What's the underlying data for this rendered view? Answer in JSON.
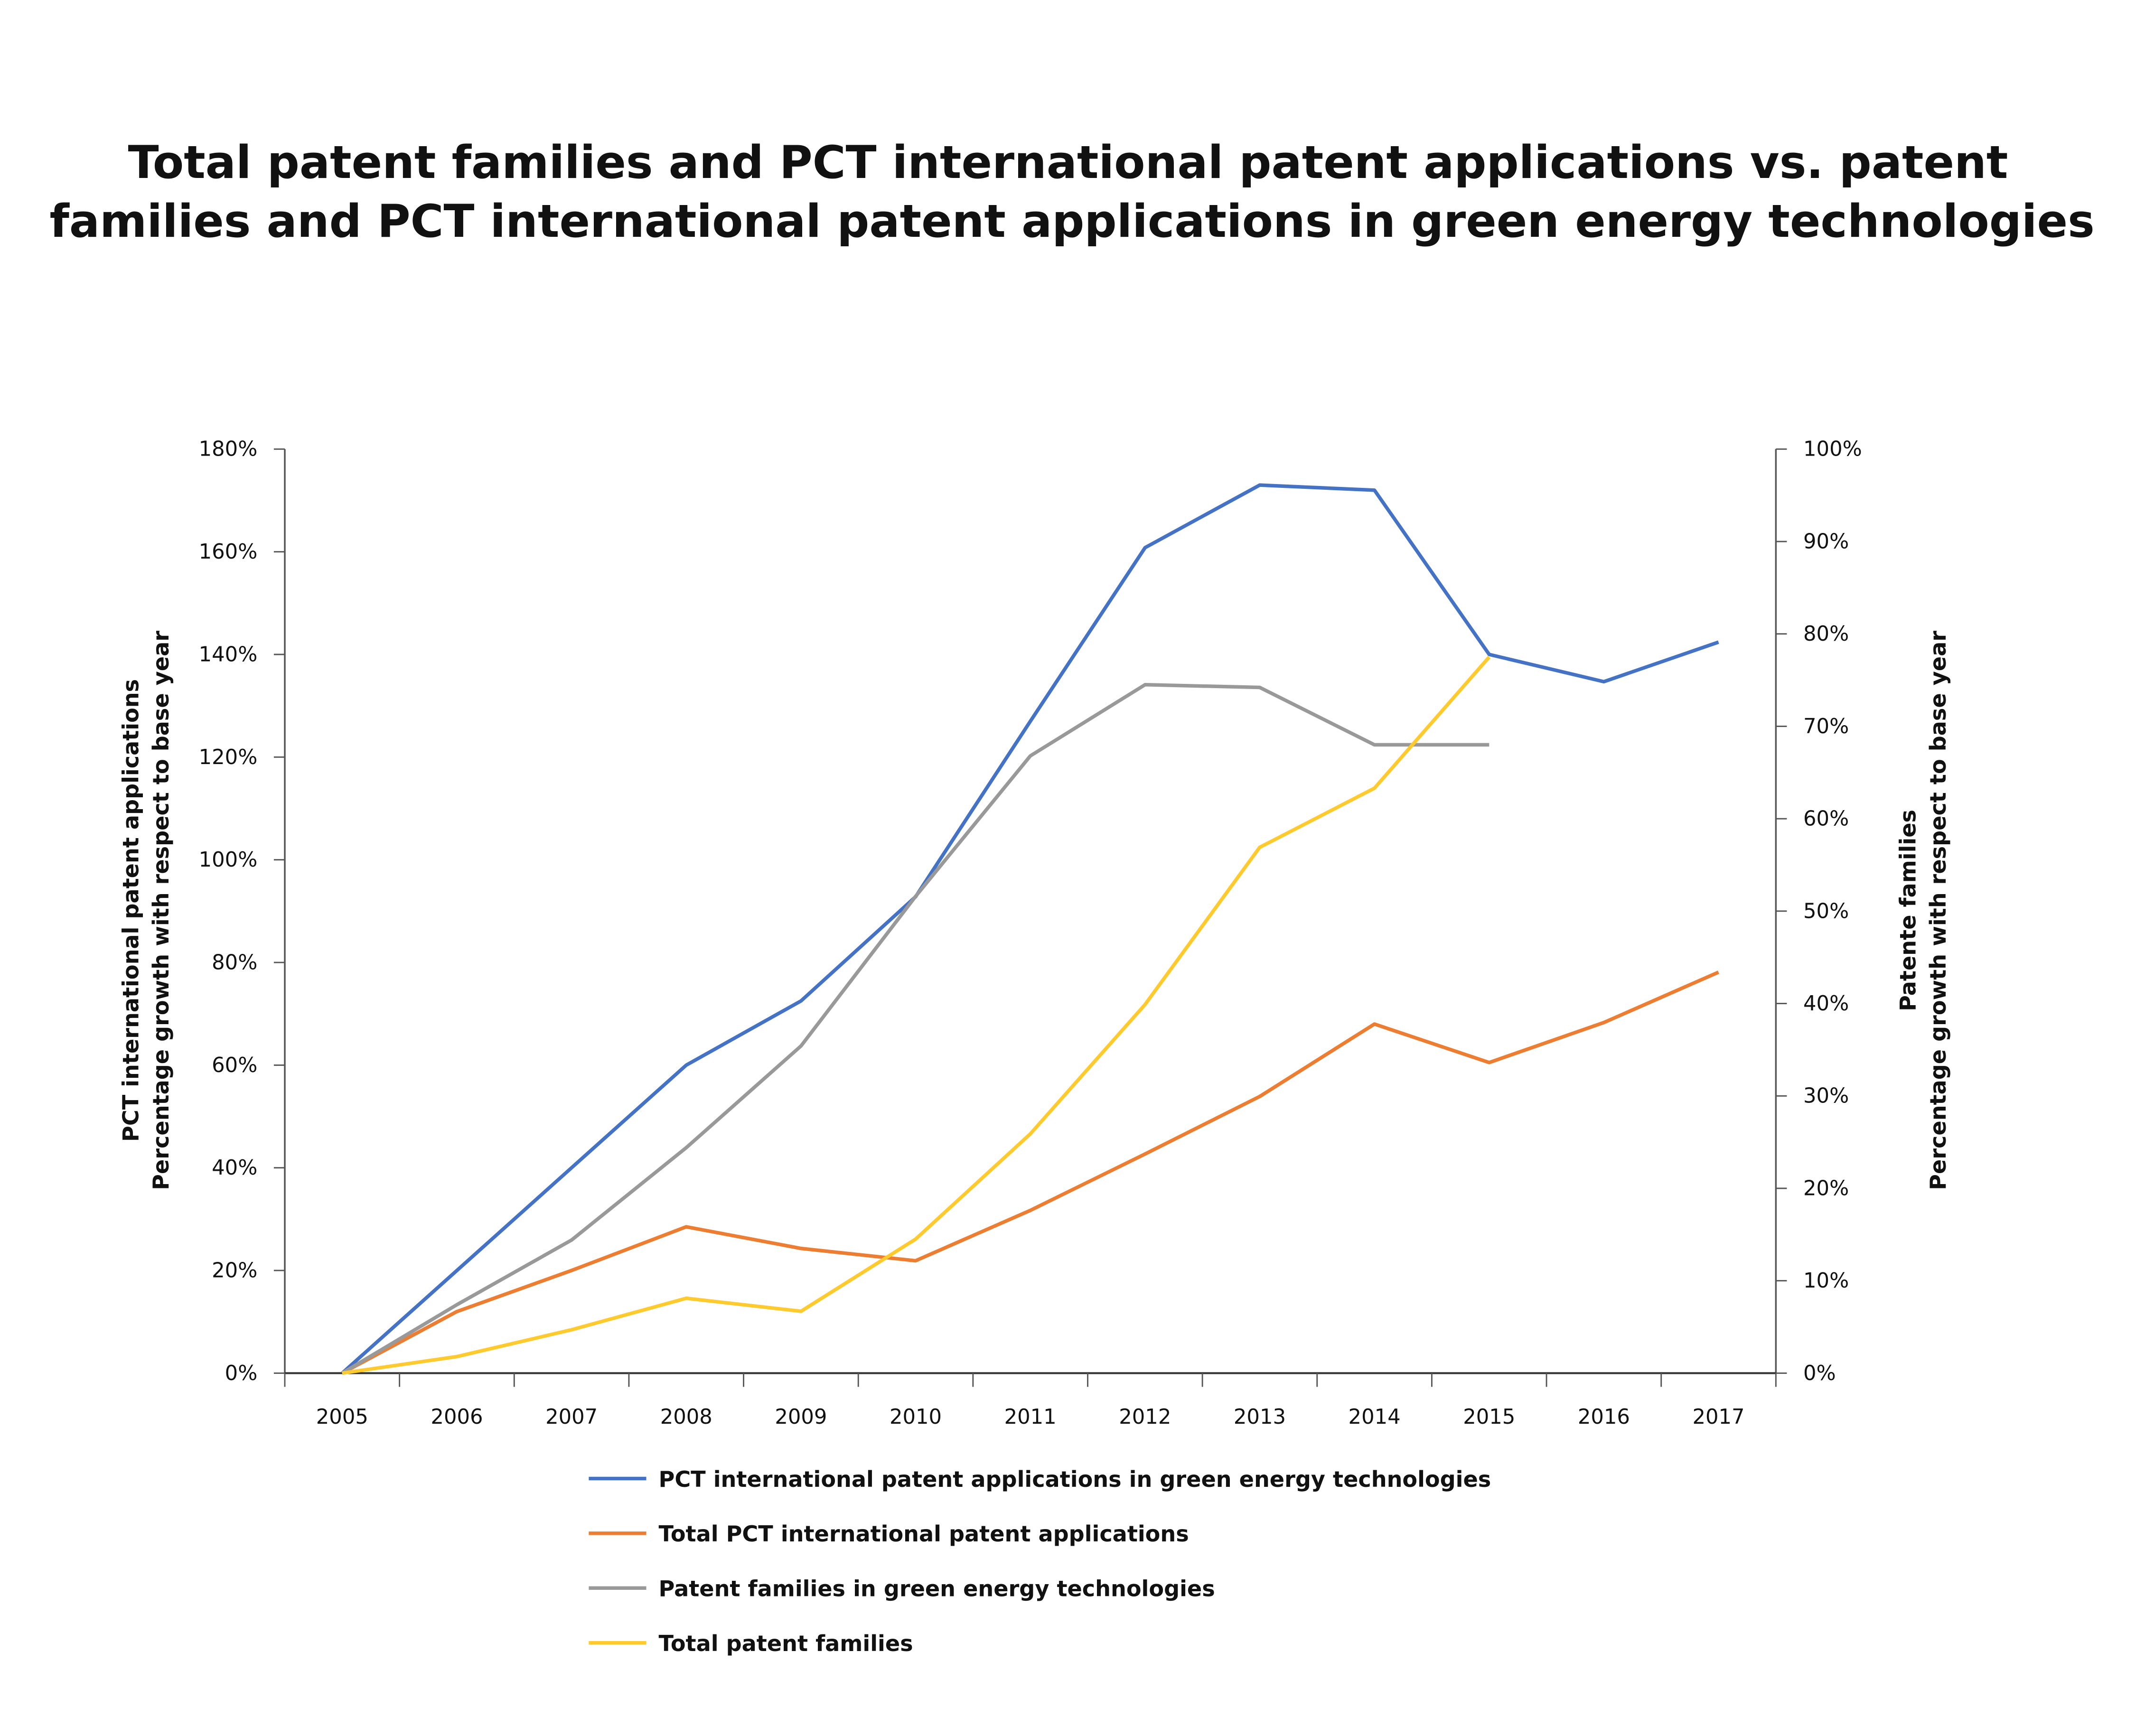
{
  "chart_data": {
    "type": "line",
    "title": [
      "Total patent families and PCT international patent applications vs. patent",
      "families and PCT international patent applications in green energy technologies"
    ],
    "x": [
      "2005",
      "2006",
      "2007",
      "2008",
      "2009",
      "2010",
      "2011",
      "2012",
      "2013",
      "2014",
      "2015",
      "2016",
      "2017"
    ],
    "y_left": {
      "label": [
        "PCT international patent applications",
        "Percentage growth with respect to base year"
      ],
      "range": [
        0,
        180
      ],
      "ticks": [
        "0%",
        "20%",
        "40%",
        "60%",
        "80%",
        "100%",
        "120%",
        "140%",
        "160%",
        "180%"
      ]
    },
    "y_right": {
      "label": [
        "Patente families",
        "Percentage growth with respect to base year"
      ],
      "range": [
        0,
        100
      ],
      "ticks": [
        "0%",
        "10%",
        "20%",
        "30%",
        "40%",
        "50%",
        "60%",
        "70%",
        "80%",
        "90%",
        "100%"
      ]
    },
    "grid": false,
    "legend_placement": "bottom",
    "series": [
      {
        "name": "PCT international patent applications in green energy technologies",
        "axis": "left",
        "color": "#4472C4",
        "values": [
          0,
          20,
          40,
          60,
          72.5,
          92.8,
          127,
          160.8,
          173,
          172,
          140,
          134.7,
          142.4
        ]
      },
      {
        "name": "Total PCT international patent applications",
        "axis": "left",
        "color": "#ED7D31",
        "values": [
          0,
          12,
          20,
          28.5,
          24.3,
          21.9,
          31.7,
          42.7,
          53.9,
          68,
          60.5,
          68.3,
          78.1
        ]
      },
      {
        "name": "Patent families in green energy technologies",
        "axis": "right",
        "color": "#999999",
        "values": [
          0,
          7.4,
          14.4,
          24.4,
          35.4,
          51.6,
          66.8,
          74.5,
          74.2,
          68,
          68,
          null,
          null
        ]
      },
      {
        "name": "Total patent families",
        "axis": "right",
        "color": "#FFCA2E",
        "values": [
          0,
          1.8,
          4.7,
          8.1,
          6.7,
          14.5,
          25.9,
          39.9,
          56.9,
          63.3,
          77.5,
          null,
          null
        ]
      }
    ]
  }
}
